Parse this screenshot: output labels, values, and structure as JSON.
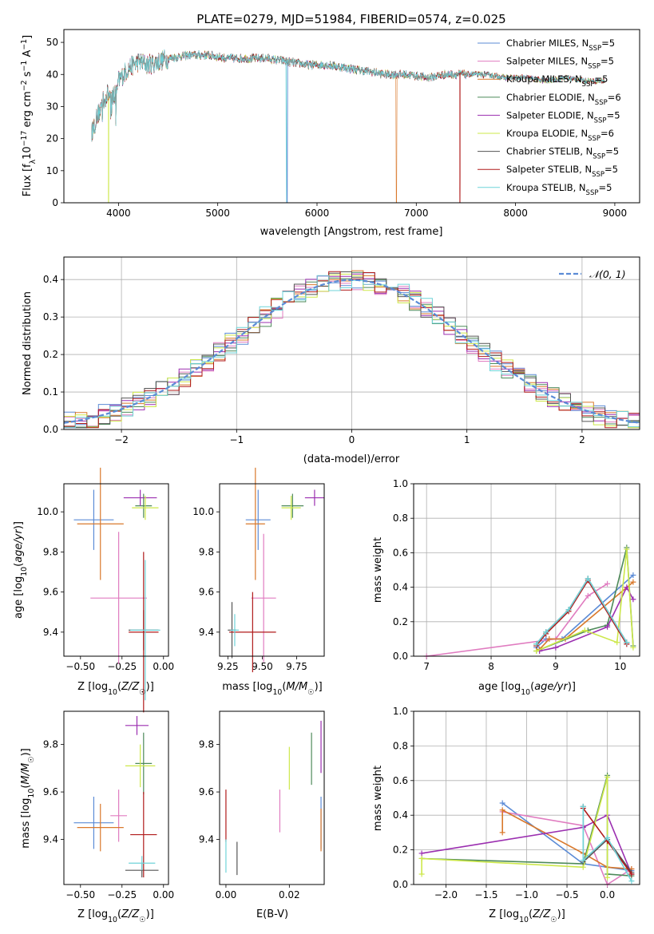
{
  "title": "PLATE=0279, MJD=51984, FIBERID=0574, z=0.025",
  "colors": {
    "Chabrier MILES": "#5b8bd6",
    "Salpeter MILES": "#e07cc0",
    "Kroupa MILES": "#d9782b",
    "Chabrier ELODIE": "#4e8a5a",
    "Salpeter ELODIE": "#9b2fb0",
    "Kroupa ELODIE": "#cde84a",
    "Chabrier STELIB": "#555555",
    "Salpeter STELIB": "#b01a1a",
    "Kroupa STELIB": "#6fd3d8"
  },
  "legend": {
    "spectrum": [
      {
        "name": "Chabrier MILES",
        "suffix": ", N",
        "sub": "SSP",
        "n": "=5"
      },
      {
        "name": "Salpeter MILES",
        "suffix": ", N",
        "sub": "SSP",
        "n": "=5"
      },
      {
        "name": "Kroupa MILES",
        "suffix": ", N",
        "sub": "SSP",
        "n": "=5"
      },
      {
        "name": "Chabrier ELODIE",
        "suffix": ", N",
        "sub": "SSP",
        "n": "=6"
      },
      {
        "name": "Salpeter ELODIE",
        "suffix": ", N",
        "sub": "SSP",
        "n": "=5"
      },
      {
        "name": "Kroupa ELODIE",
        "suffix": ", N",
        "sub": "SSP",
        "n": "=6"
      },
      {
        "name": "Chabrier STELIB",
        "suffix": ", N",
        "sub": "SSP",
        "n": "=5"
      },
      {
        "name": "Salpeter STELIB",
        "suffix": ", N",
        "sub": "SSP",
        "n": "=5"
      },
      {
        "name": "Kroupa STELIB",
        "suffix": ", N",
        "sub": "SSP",
        "n": "=5"
      }
    ],
    "hist": "𝒩(0, 1)"
  },
  "chart_data": [
    {
      "type": "line",
      "panel": "spectrum",
      "title": "PLATE=0279, MJD=51984, FIBERID=0574, z=0.025",
      "xlabel": "wavelength [Angstrom, rest frame]",
      "ylabel": "Flux [f_λ 10^-17 erg cm^-2 s^-1 A^-1]",
      "xlim": [
        3450,
        9250
      ],
      "ylim": [
        0,
        54
      ],
      "xticks": [
        4000,
        5000,
        6000,
        7000,
        8000,
        9000
      ],
      "yticks": [
        0,
        10,
        20,
        30,
        40,
        50
      ],
      "x": [
        3730,
        3800,
        3850,
        3900,
        3950,
        4000,
        4100,
        4200,
        4300,
        4400,
        4500,
        4700,
        4900,
        5100,
        5300,
        5500,
        5700,
        5900,
        6100,
        6300,
        6500,
        6700,
        6900,
        7100,
        7300,
        7500,
        7700,
        7900,
        8100,
        8300,
        8500,
        8700,
        8900
      ],
      "y": [
        22,
        28,
        32,
        34,
        33,
        38,
        42,
        44,
        43,
        44,
        45,
        46,
        46,
        45,
        45,
        45,
        44,
        43,
        43,
        42,
        41,
        40,
        40,
        39,
        40,
        40,
        40,
        39,
        39,
        38,
        39,
        38,
        38
      ],
      "grid": false,
      "legend_position": "upper right"
    },
    {
      "type": "line",
      "panel": "residual distribution",
      "xlabel": "(data-model)/error",
      "ylabel": "Normed distribution",
      "xlim": [
        -2.5,
        2.5
      ],
      "ylim": [
        0,
        0.46
      ],
      "xticks": [
        -2,
        -1,
        0,
        1,
        2
      ],
      "yticks": [
        0.0,
        0.1,
        0.2,
        0.3,
        0.4
      ],
      "normal_curve": {
        "name": "𝒩(0, 1)",
        "mean": 0,
        "sigma": 1
      },
      "grid": true,
      "legend_position": "upper right"
    },
    {
      "type": "scatter",
      "panel": "age vs Z",
      "xlabel": "Z [log10(Z/Z☉)]",
      "ylabel": "age [log10(age/yr)]",
      "xlim": [
        -0.6,
        0.03
      ],
      "ylim": [
        9.28,
        10.14
      ],
      "xticks": [
        -0.5,
        -0.25,
        0.0
      ],
      "yticks": [
        9.4,
        9.6,
        9.8,
        10.0
      ],
      "points": [
        {
          "model": "Chabrier MILES",
          "x": -0.42,
          "xerr": 0.12,
          "y": 9.96,
          "yerr": 0.15
        },
        {
          "model": "Salpeter MILES",
          "x": -0.27,
          "xerr": 0.17,
          "y": 9.57,
          "yerr": 0.33
        },
        {
          "model": "Kroupa MILES",
          "x": -0.38,
          "xerr": 0.14,
          "y": 9.94,
          "yerr": 0.28
        },
        {
          "model": "Chabrier ELODIE",
          "x": -0.12,
          "xerr": 0.05,
          "y": 10.03,
          "yerr": 0.06
        },
        {
          "model": "Salpeter ELODIE",
          "x": -0.14,
          "xerr": 0.1,
          "y": 10.07,
          "yerr": 0.04
        },
        {
          "model": "Kroupa ELODIE",
          "x": -0.11,
          "xerr": 0.08,
          "y": 10.02,
          "yerr": 0.06
        },
        {
          "model": "Chabrier STELIB",
          "x": -0.12,
          "xerr": 0.09,
          "y": 9.41,
          "yerr": 0.1
        },
        {
          "model": "Salpeter STELIB",
          "x": -0.12,
          "xerr": 0.09,
          "y": 9.4,
          "yerr": 0.4
        },
        {
          "model": "Kroupa STELIB",
          "x": -0.11,
          "xerr": 0.09,
          "y": 9.41,
          "yerr": 0.35
        }
      ]
    },
    {
      "type": "scatter",
      "panel": "age vs mass",
      "xlabel": "mass [log10(M/M☉)]",
      "xlim": [
        9.19,
        9.95
      ],
      "ylim": [
        9.28,
        10.14
      ],
      "xticks": [
        9.25,
        9.5,
        9.75
      ],
      "yticks": [
        9.4,
        9.6,
        9.8,
        10.0
      ],
      "points": [
        {
          "model": "Chabrier MILES",
          "x": 9.47,
          "xerr": 0.09,
          "y": 9.96,
          "yerr": 0.15
        },
        {
          "model": "Salpeter MILES",
          "x": 9.51,
          "xerr": 0.09,
          "y": 9.57,
          "yerr": 0.32
        },
        {
          "model": "Kroupa MILES",
          "x": 9.45,
          "xerr": 0.07,
          "y": 9.94,
          "yerr": 0.28
        },
        {
          "model": "Chabrier ELODIE",
          "x": 9.72,
          "xerr": 0.08,
          "y": 10.03,
          "yerr": 0.06
        },
        {
          "model": "Salpeter ELODIE",
          "x": 9.88,
          "xerr": 0.07,
          "y": 10.07,
          "yerr": 0.04
        },
        {
          "model": "Kroupa ELODIE",
          "x": 9.71,
          "xerr": 0.07,
          "y": 10.02,
          "yerr": 0.06
        },
        {
          "model": "Chabrier STELIB",
          "x": 9.28,
          "xerr": 0.03,
          "y": 9.41,
          "yerr": 0.14
        },
        {
          "model": "Salpeter STELIB",
          "x": 9.43,
          "xerr": 0.17,
          "y": 9.4,
          "yerr": 0.2
        },
        {
          "model": "Kroupa STELIB",
          "x": 9.3,
          "xerr": 0.03,
          "y": 9.41,
          "yerr": 0.08
        }
      ]
    },
    {
      "type": "line",
      "panel": "mass weight vs age",
      "xlabel": "age [log10(age/yr)]",
      "ylabel": "mass weight",
      "xlim": [
        6.8,
        10.3
      ],
      "ylim": [
        0,
        1
      ],
      "xticks": [
        7,
        8,
        9,
        10
      ],
      "yticks": [
        0.0,
        0.2,
        0.4,
        0.6,
        0.8,
        1.0
      ],
      "grid": true,
      "series": [
        {
          "model": "Chabrier MILES",
          "x": [
            8.7,
            8.85,
            9.1,
            10.2
          ],
          "y": [
            0.05,
            0.1,
            0.1,
            0.47
          ]
        },
        {
          "model": "Salpeter MILES",
          "x": [
            7.0,
            9.0,
            9.5,
            9.8
          ],
          "y": [
            0.0,
            0.1,
            0.35,
            0.42
          ]
        },
        {
          "model": "Kroupa MILES",
          "x": [
            8.75,
            8.9,
            9.15,
            10.2
          ],
          "y": [
            0.04,
            0.1,
            0.1,
            0.43
          ]
        },
        {
          "model": "Chabrier ELODIE",
          "x": [
            8.7,
            9.5,
            9.8,
            10.1,
            10.2
          ],
          "y": [
            0.03,
            0.15,
            0.18,
            0.63,
            0.06
          ]
        },
        {
          "model": "Salpeter ELODIE",
          "x": [
            8.75,
            9.0,
            9.8,
            10.1,
            10.2
          ],
          "y": [
            0.03,
            0.05,
            0.17,
            0.4,
            0.33
          ]
        },
        {
          "model": "Kroupa ELODIE",
          "x": [
            8.7,
            9.45,
            9.95,
            10.1,
            10.2
          ],
          "y": [
            0.03,
            0.15,
            0.08,
            0.62,
            0.05
          ]
        },
        {
          "model": "Chabrier STELIB",
          "x": [
            8.7,
            8.85,
            9.2,
            9.5,
            10.1
          ],
          "y": [
            0.07,
            0.14,
            0.27,
            0.45,
            0.08
          ]
        },
        {
          "model": "Salpeter STELIB",
          "x": [
            8.7,
            8.85,
            9.2,
            9.5,
            10.1
          ],
          "y": [
            0.06,
            0.13,
            0.26,
            0.44,
            0.07
          ]
        },
        {
          "model": "Kroupa STELIB",
          "x": [
            8.7,
            8.85,
            9.2,
            9.5,
            10.1
          ],
          "y": [
            0.07,
            0.14,
            0.27,
            0.45,
            0.08
          ]
        }
      ]
    },
    {
      "type": "scatter",
      "panel": "mass vs Z",
      "xlabel": "Z [log10(Z/Z☉)]",
      "ylabel": "mass [log10(M/M☉)]",
      "xlim": [
        -0.6,
        0.03
      ],
      "ylim": [
        9.21,
        9.94
      ],
      "xticks": [
        -0.5,
        -0.25,
        0.0
      ],
      "yticks": [
        9.4,
        9.6,
        9.8
      ],
      "points": [
        {
          "model": "Chabrier MILES",
          "x": -0.42,
          "xerr": 0.12,
          "y": 9.47,
          "yerr": 0.11
        },
        {
          "model": "Salpeter MILES",
          "x": -0.27,
          "xerr": 0.05,
          "y": 9.5,
          "yerr": 0.11
        },
        {
          "model": "Kroupa MILES",
          "x": -0.38,
          "xerr": 0.14,
          "y": 9.45,
          "yerr": 0.1
        },
        {
          "model": "Chabrier ELODIE",
          "x": -0.12,
          "xerr": 0.05,
          "y": 9.72,
          "yerr": 0.13
        },
        {
          "model": "Salpeter ELODIE",
          "x": -0.16,
          "xerr": 0.07,
          "y": 9.88,
          "yerr": 0.04
        },
        {
          "model": "Kroupa ELODIE",
          "x": -0.14,
          "xerr": 0.09,
          "y": 9.71,
          "yerr": 0.09
        },
        {
          "model": "Chabrier STELIB",
          "x": -0.13,
          "xerr": 0.1,
          "y": 9.27,
          "yerr": 0.03
        },
        {
          "model": "Salpeter STELIB",
          "x": -0.12,
          "xerr": 0.08,
          "y": 9.42,
          "yerr": 0.18
        },
        {
          "model": "Kroupa STELIB",
          "x": -0.13,
          "xerr": 0.08,
          "y": 9.3,
          "yerr": 0.03
        }
      ]
    },
    {
      "type": "scatter",
      "panel": "mass vs E(B-V)",
      "xlabel": "E(B-V)",
      "xlim": [
        -0.002,
        0.031
      ],
      "ylim": [
        9.21,
        9.94
      ],
      "xticks": [
        0.0,
        0.02
      ],
      "yticks": [
        9.4,
        9.6,
        9.8
      ],
      "points": [
        {
          "model": "Chabrier MILES",
          "x": 0.03,
          "y": 9.47,
          "yerr": 0.11
        },
        {
          "model": "Salpeter MILES",
          "x": 0.017,
          "y": 9.52,
          "yerr": 0.09
        },
        {
          "model": "Kroupa MILES",
          "x": 0.03,
          "y": 9.44,
          "yerr": 0.09
        },
        {
          "model": "Chabrier ELODIE",
          "x": 0.027,
          "y": 9.74,
          "yerr": 0.11
        },
        {
          "model": "Salpeter ELODIE",
          "x": 0.03,
          "y": 9.79,
          "yerr": 0.11
        },
        {
          "model": "Kroupa ELODIE",
          "x": 0.02,
          "y": 9.7,
          "yerr": 0.09
        },
        {
          "model": "Chabrier STELIB",
          "x": 0.0035,
          "y": 9.32,
          "yerr": 0.07
        },
        {
          "model": "Salpeter STELIB",
          "x": 0.0,
          "y": 9.5,
          "yerr": 0.11
        },
        {
          "model": "Kroupa STELIB",
          "x": 0.0,
          "y": 9.33,
          "yerr": 0.07
        }
      ]
    },
    {
      "type": "line",
      "panel": "mass weight vs Z",
      "xlabel": "Z [log10(Z/Z☉)]",
      "ylabel": "mass weight",
      "xlim": [
        -2.4,
        0.4
      ],
      "ylim": [
        0,
        1
      ],
      "xticks": [
        -2.0,
        -1.5,
        -1.0,
        -0.5,
        0.0
      ],
      "yticks": [
        0.0,
        0.2,
        0.4,
        0.6,
        0.8,
        1.0
      ],
      "grid": true,
      "series": [
        {
          "model": "Chabrier MILES",
          "x": [
            -1.3,
            -0.3,
            0.0,
            0.3
          ],
          "y": [
            0.47,
            0.12,
            0.1,
            0.08
          ]
        },
        {
          "model": "Salpeter MILES",
          "x": [
            -1.3,
            -0.3,
            0.0,
            0.3
          ],
          "y": [
            0.42,
            0.34,
            0.0,
            0.09
          ]
        },
        {
          "model": "Kroupa MILES",
          "x": [
            -1.3,
            -1.3,
            -0.3,
            0.0,
            0.3
          ],
          "y": [
            0.3,
            0.43,
            0.18,
            0.1,
            0.09
          ]
        },
        {
          "model": "Chabrier ELODIE",
          "x": [
            -2.3,
            -0.3,
            0.0,
            0.0,
            0.3
          ],
          "y": [
            0.15,
            0.12,
            0.63,
            0.06,
            0.05
          ]
        },
        {
          "model": "Salpeter ELODIE",
          "x": [
            -2.3,
            -0.3,
            0.0,
            0.3
          ],
          "y": [
            0.18,
            0.33,
            0.4,
            0.06
          ]
        },
        {
          "model": "Kroupa ELODIE",
          "x": [
            -2.3,
            -2.3,
            -0.3,
            0.0,
            0.0
          ],
          "y": [
            0.06,
            0.15,
            0.1,
            0.62,
            0.04
          ]
        },
        {
          "model": "Chabrier STELIB",
          "x": [
            -0.3,
            -0.3,
            0.0,
            0.3
          ],
          "y": [
            0.45,
            0.13,
            0.26,
            0.07
          ]
        },
        {
          "model": "Salpeter STELIB",
          "x": [
            -0.3,
            0.0,
            0.3
          ],
          "y": [
            0.44,
            0.25,
            0.06
          ]
        },
        {
          "model": "Kroupa STELIB",
          "x": [
            -0.3,
            -0.3,
            0.0,
            0.3
          ],
          "y": [
            0.45,
            0.14,
            0.27,
            0.02
          ]
        }
      ]
    }
  ]
}
